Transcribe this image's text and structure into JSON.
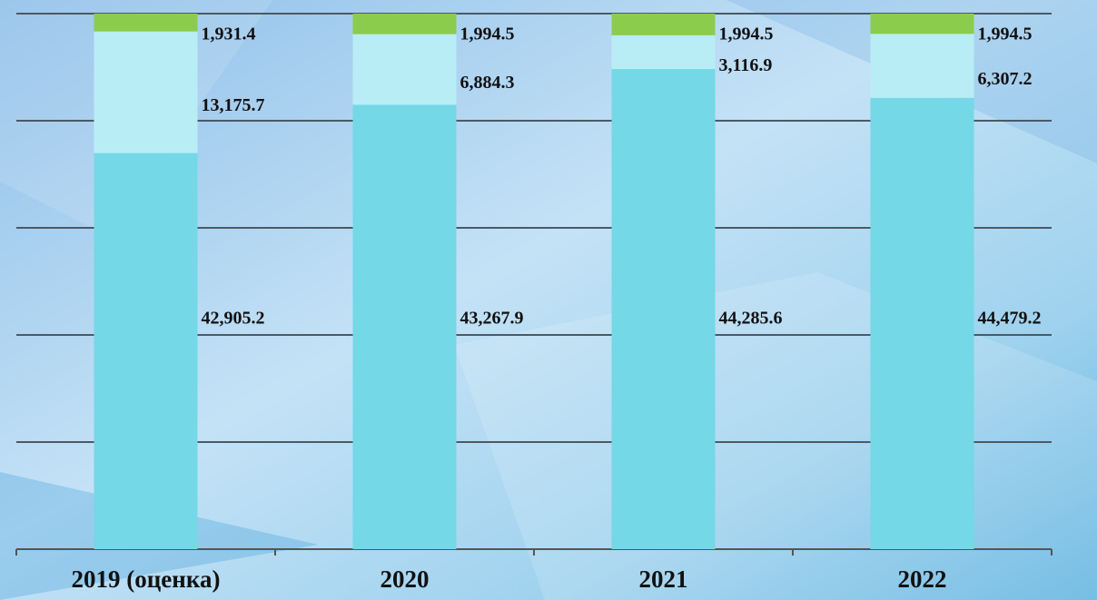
{
  "chart_data": {
    "type": "bar",
    "stacking": "percent",
    "categories": [
      "2019 (оценка)",
      "2020",
      "2021",
      "2022"
    ],
    "series": [
      {
        "color": "#74d8e6",
        "values": [
          42905.2,
          43267.9,
          44285.6,
          44479.2
        ],
        "value_labels": [
          "42,905.2",
          "43,267.9",
          "44,285.6",
          "44,479.2"
        ]
      },
      {
        "color": "#b9edf6",
        "values": [
          13175.7,
          6884.3,
          3116.9,
          6307.2
        ],
        "value_labels": [
          "13,175.7",
          "6,884.3",
          "3,116.9",
          "6,307.2"
        ]
      },
      {
        "color": "#8ccc4c",
        "values": [
          1931.4,
          1994.5,
          1994.5,
          1994.5
        ],
        "value_labels": [
          "1,931.4",
          "1,994.5",
          "1,994.5",
          "1,994.5"
        ]
      }
    ],
    "ylim": [
      0,
      100
    ],
    "yticks": [
      0,
      20,
      40,
      60,
      80,
      100
    ],
    "grid": true
  }
}
